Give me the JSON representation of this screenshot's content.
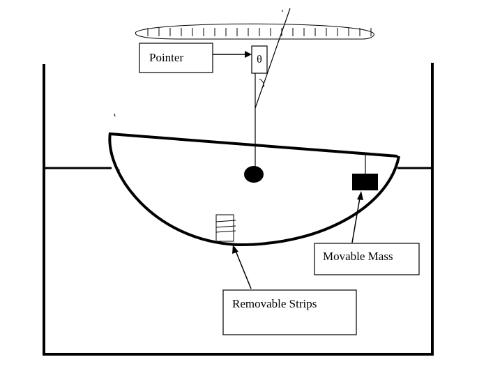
{
  "labels": {
    "pointer": "Pointer",
    "theta": "θ",
    "movable_mass": "Movable Mass",
    "removable_strips": "Removable Strips"
  },
  "colors": {
    "ink": "#000000",
    "background": "#ffffff"
  }
}
